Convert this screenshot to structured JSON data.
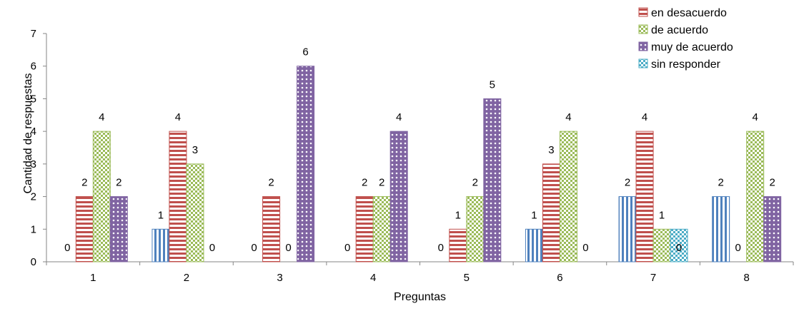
{
  "chart_data": {
    "type": "bar",
    "title": "",
    "xlabel": "Preguntas",
    "ylabel": "Cantidad de respuestas",
    "ylim": [
      0,
      7
    ],
    "yticks": [
      "0",
      "1",
      "2",
      "3",
      "4",
      "5",
      "6",
      "7"
    ],
    "categories": [
      "1",
      "2",
      "3",
      "4",
      "5",
      "6",
      "7",
      "8"
    ],
    "grid": false,
    "legend_position": "top-right",
    "legend": [
      "en desacuerdo",
      "de acuerdo",
      "muy de acuerdo",
      "sin responder"
    ],
    "series": [
      {
        "values": [
          0,
          1,
          0,
          0,
          0,
          1,
          2,
          2
        ],
        "color": "#4f81bd",
        "pattern": "vertical-stripes"
      },
      {
        "name": "en desacuerdo",
        "values": [
          2,
          4,
          2,
          2,
          1,
          3,
          4,
          0
        ],
        "color": "#c0504d",
        "pattern": "horizontal-stripes"
      },
      {
        "name": "de acuerdo",
        "values": [
          4,
          3,
          0,
          2,
          2,
          4,
          1,
          4
        ],
        "color": "#9bbb59",
        "pattern": "checker"
      },
      {
        "name": "muy de acuerdo",
        "values": [
          2,
          0,
          6,
          4,
          5,
          0,
          0,
          2
        ],
        "color": "#8064a2",
        "pattern": "dots"
      },
      {
        "name": "sin responder",
        "values": [
          null,
          null,
          null,
          null,
          null,
          null,
          1,
          null
        ],
        "color": "#4bacc6",
        "pattern": "checker"
      }
    ],
    "data_labels": [
      {
        "category": "1",
        "series": 0,
        "text": "0"
      },
      {
        "category": "1",
        "series": 1,
        "text": "2"
      },
      {
        "category": "1",
        "series": 2,
        "text": "4"
      },
      {
        "category": "1",
        "series": 3,
        "text": "2"
      },
      {
        "category": "2",
        "series": 0,
        "text": "1"
      },
      {
        "category": "2",
        "series": 1,
        "text": "4"
      },
      {
        "category": "2",
        "series": 2,
        "text": "3"
      },
      {
        "category": "2",
        "series": 3,
        "text": "0"
      },
      {
        "category": "3",
        "series": 0,
        "text": "0"
      },
      {
        "category": "3",
        "series": 1,
        "text": "2"
      },
      {
        "category": "3",
        "series": 2,
        "text": "0"
      },
      {
        "category": "3",
        "series": 3,
        "text": "6"
      },
      {
        "category": "4",
        "series": 0,
        "text": "0"
      },
      {
        "category": "4",
        "series": 1,
        "text": "2"
      },
      {
        "category": "4",
        "series": 2,
        "text": "2"
      },
      {
        "category": "4",
        "series": 3,
        "text": "4"
      },
      {
        "category": "5",
        "series": 0,
        "text": "0"
      },
      {
        "category": "5",
        "series": 1,
        "text": "1"
      },
      {
        "category": "5",
        "series": 2,
        "text": "2"
      },
      {
        "category": "5",
        "series": 3,
        "text": "5"
      },
      {
        "category": "6",
        "series": 0,
        "text": "1"
      },
      {
        "category": "6",
        "series": 1,
        "text": "3"
      },
      {
        "category": "6",
        "series": 2,
        "text": "4"
      },
      {
        "category": "6",
        "series": 3,
        "text": "0"
      },
      {
        "category": "7",
        "series": 0,
        "text": "2"
      },
      {
        "category": "7",
        "series": 1,
        "text": "4"
      },
      {
        "category": "7",
        "series": 2,
        "text": "1"
      },
      {
        "category": "7",
        "series": 3,
        "text": "0"
      },
      {
        "category": "8",
        "series": 0,
        "text": "2"
      },
      {
        "category": "8",
        "series": 1,
        "text": "0"
      },
      {
        "category": "8",
        "series": 2,
        "text": "4"
      },
      {
        "category": "8",
        "series": 3,
        "text": "2"
      }
    ]
  }
}
